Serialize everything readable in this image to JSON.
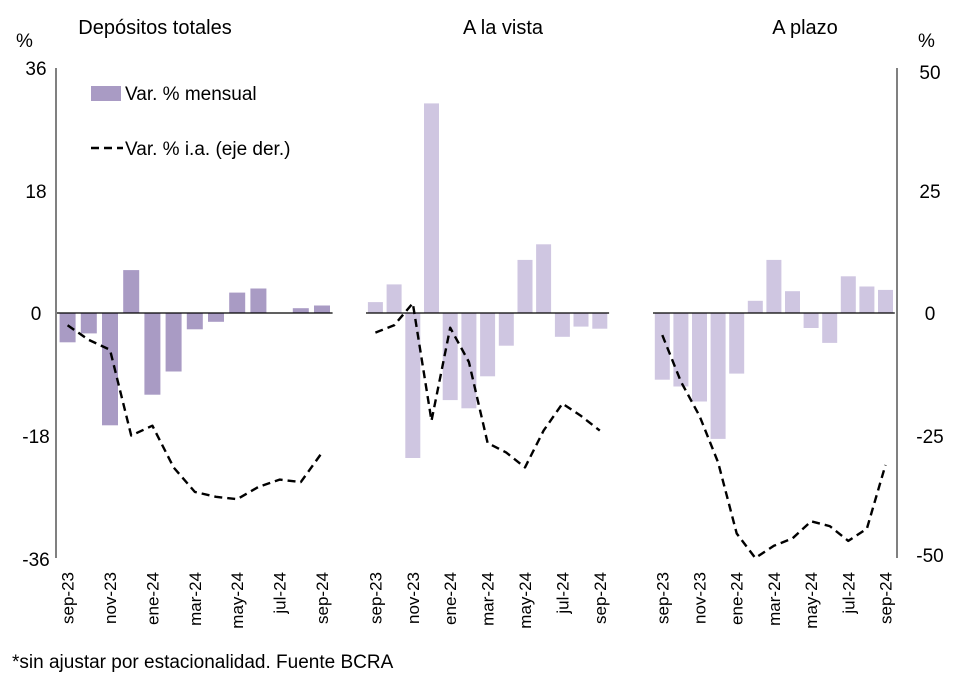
{
  "chart_data": [
    {
      "type": "bar+line",
      "title": "Depósitos totales",
      "categories": [
        "sep-23",
        "oct-23",
        "nov-23",
        "dic-23",
        "ene-24",
        "feb-24",
        "mar-24",
        "abr-24",
        "may-24",
        "jun-24",
        "jul-24",
        "ago-24",
        "sep-24"
      ],
      "tick_labels": [
        "sep-23",
        "nov-23",
        "ene-24",
        "mar-24",
        "may-24",
        "jul-24",
        "sep-24"
      ],
      "series": [
        {
          "name": "Var. % mensual",
          "kind": "bar",
          "axis": "left",
          "color": "#a99bc4",
          "values": [
            -4.3,
            -3.0,
            -16.5,
            6.3,
            -12.0,
            -8.6,
            -2.4,
            -1.3,
            3.0,
            3.6,
            0.0,
            0.7,
            1.1
          ]
        },
        {
          "name": "Var. % i.a. (eje der.)",
          "kind": "line",
          "axis": "right",
          "style": "dashed",
          "color": "#000000",
          "values": [
            -2.5,
            -5.5,
            -7.5,
            -25.0,
            -23.0,
            -31.5,
            -36.5,
            -37.5,
            -38.0,
            -35.5,
            -34.0,
            -34.5,
            -28.5
          ]
        }
      ]
    },
    {
      "type": "bar+line",
      "title": "A la vista",
      "categories": [
        "sep-23",
        "oct-23",
        "nov-23",
        "dic-23",
        "ene-24",
        "feb-24",
        "mar-24",
        "abr-24",
        "may-24",
        "jun-24",
        "jul-24",
        "ago-24",
        "sep-24"
      ],
      "tick_labels": [
        "sep-23",
        "nov-23",
        "ene-24",
        "mar-24",
        "may-24",
        "jul-24",
        "sep-24"
      ],
      "series": [
        {
          "name": "Var. % mensual",
          "kind": "bar",
          "axis": "left",
          "color": "#cfc6e1",
          "values": [
            1.6,
            4.2,
            -21.3,
            30.8,
            -12.8,
            -14.0,
            -9.3,
            -4.8,
            7.8,
            10.1,
            -3.5,
            -2.0,
            -2.3
          ]
        },
        {
          "name": "Var. % i.a. (eje der.)",
          "kind": "line",
          "axis": "right",
          "style": "dashed",
          "color": "#000000",
          "values": [
            -4.0,
            -2.5,
            2.0,
            -22.0,
            -3.0,
            -10.0,
            -26.5,
            -28.5,
            -31.5,
            -24.0,
            -18.5,
            -21.0,
            -24.0
          ]
        }
      ]
    },
    {
      "type": "bar+line",
      "title": "A plazo",
      "categories": [
        "sep-23",
        "oct-23",
        "nov-23",
        "dic-23",
        "ene-24",
        "feb-24",
        "mar-24",
        "abr-24",
        "may-24",
        "jun-24",
        "jul-24",
        "ago-24",
        "sep-24"
      ],
      "tick_labels": [
        "sep-23",
        "nov-23",
        "ene-24",
        "mar-24",
        "may-24",
        "jul-24",
        "sep-24"
      ],
      "series": [
        {
          "name": "Var. % mensual",
          "kind": "bar",
          "axis": "left",
          "color": "#cfc6e1",
          "values": [
            -9.8,
            -10.8,
            -13.0,
            -18.5,
            -8.9,
            1.8,
            7.8,
            3.2,
            -2.2,
            -4.4,
            5.4,
            3.9,
            3.4
          ]
        },
        {
          "name": "Var. % i.a. (eje der.)",
          "kind": "line",
          "axis": "right",
          "style": "dashed",
          "color": "#000000",
          "values": [
            -4.5,
            -14.0,
            -21.0,
            -30.5,
            -45.0,
            -50.0,
            -47.5,
            -46.0,
            -42.5,
            -43.5,
            -46.5,
            -44.0,
            -31.0
          ]
        }
      ]
    }
  ],
  "axes": {
    "left": {
      "unit": "%",
      "ylim": [
        -36,
        36
      ],
      "ticks": [
        "36",
        "18",
        "0",
        "-18",
        "-36"
      ]
    },
    "right": {
      "unit": "%",
      "ylim": [
        -50,
        50
      ],
      "ticks": [
        "50",
        "25",
        "0",
        "-25",
        "-50"
      ]
    }
  },
  "legend": {
    "placement": "top-left",
    "bar_label": "Var. % mensual",
    "line_label": "Var. % i.a. (eje der.)"
  },
  "footnote": "*sin ajustar por estacionalidad. Fuente BCRA"
}
